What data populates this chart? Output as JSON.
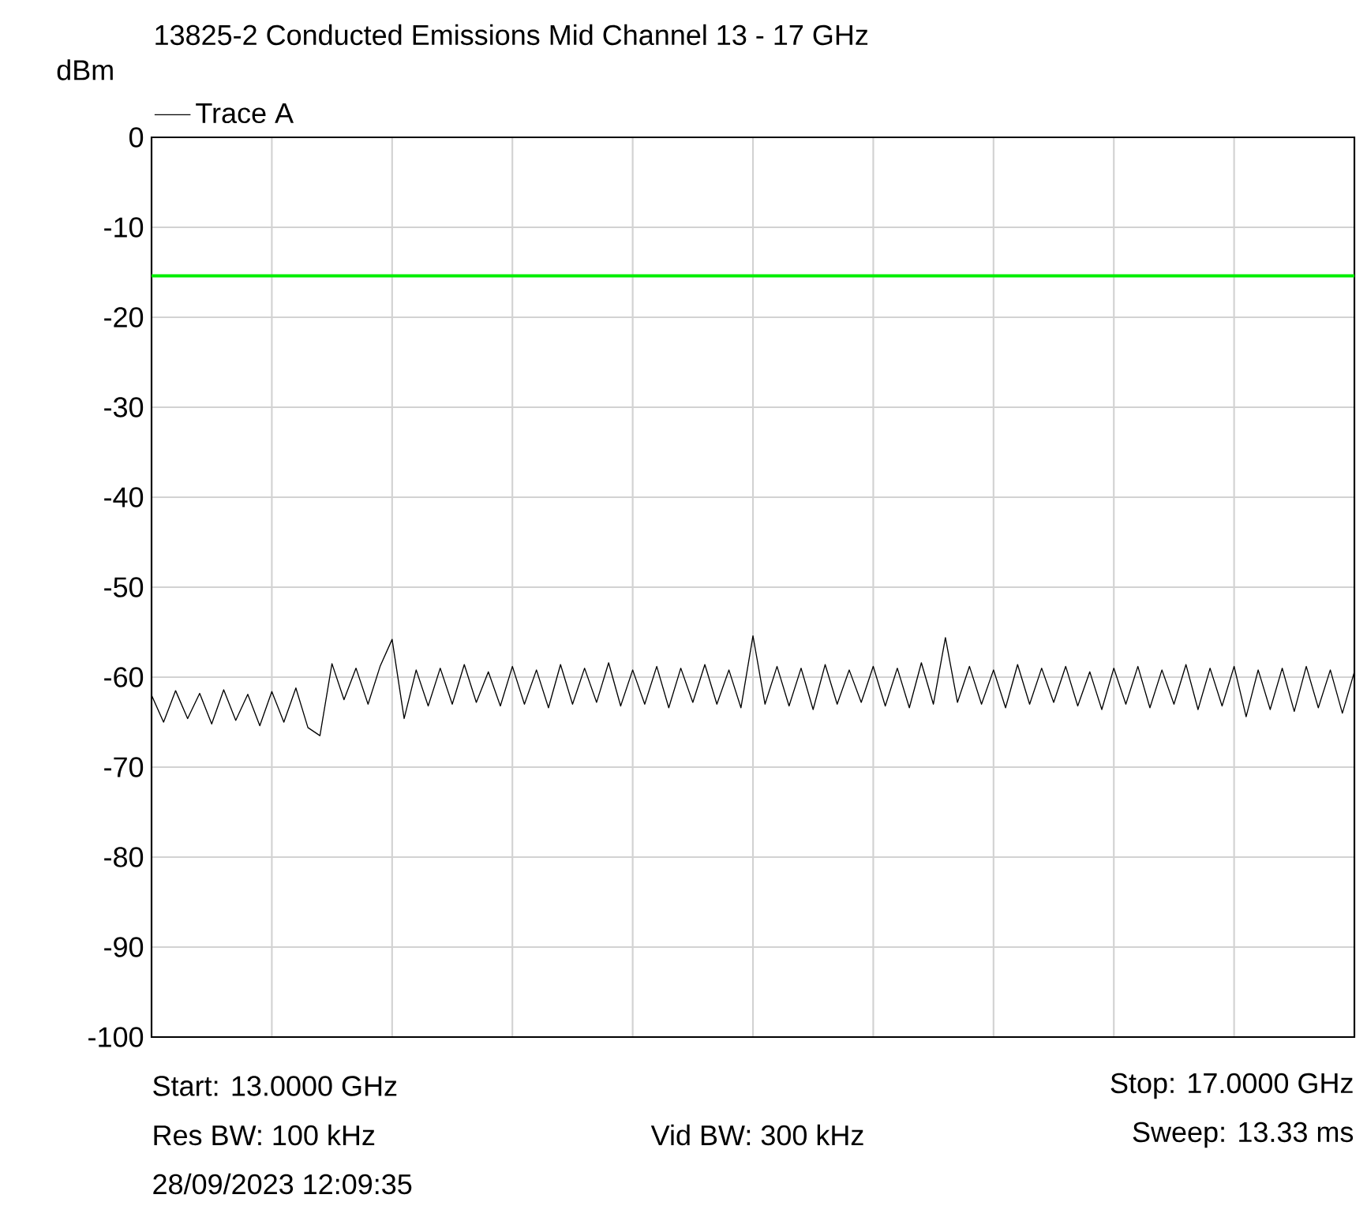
{
  "chart_data": {
    "type": "line",
    "title": "13825-2 Conducted Emissions Mid Channel 13 - 17 GHz",
    "ylabel": "dBm",
    "categories": [
      null,
      null,
      null,
      null,
      null,
      null,
      null,
      null,
      null,
      null,
      null,
      null,
      null,
      null,
      null,
      null,
      null,
      null,
      null,
      null,
      null,
      null,
      null,
      null,
      null,
      null,
      null,
      null,
      null,
      null,
      null,
      null,
      null,
      null,
      null,
      null,
      null,
      null,
      null,
      null,
      null,
      null,
      null,
      null,
      null,
      null,
      null,
      null,
      null,
      null,
      null,
      null,
      null,
      null,
      null,
      null,
      null,
      null,
      null,
      null,
      null,
      null,
      null,
      null,
      null,
      null,
      null,
      null,
      null,
      null,
      null,
      null,
      null,
      null,
      null,
      null,
      null,
      null,
      null,
      null,
      null,
      null,
      null,
      null,
      null,
      null,
      null,
      null,
      null,
      null,
      null,
      null,
      null,
      null,
      null,
      null,
      null,
      null,
      null,
      null,
      null
    ],
    "series": [
      {
        "name": "Trace A",
        "color": "#000000",
        "values": [
          -62.0,
          -65.0,
          -61.5,
          -64.6,
          -61.8,
          -65.2,
          -61.4,
          -64.8,
          -61.9,
          -65.4,
          -61.6,
          -65.0,
          -61.2,
          -65.6,
          -66.5,
          -58.5,
          -62.5,
          -59.0,
          -63.0,
          -58.8,
          -55.8,
          -64.6,
          -59.2,
          -63.2,
          -59.0,
          -63.0,
          -58.6,
          -62.8,
          -59.4,
          -63.2,
          -58.8,
          -63.0,
          -59.2,
          -63.4,
          -58.6,
          -63.0,
          -59.0,
          -62.8,
          -58.4,
          -63.2,
          -59.2,
          -63.0,
          -58.8,
          -63.4,
          -59.0,
          -62.8,
          -58.6,
          -63.0,
          -59.2,
          -63.4,
          -55.4,
          -63.0,
          -58.8,
          -63.2,
          -59.0,
          -63.6,
          -58.6,
          -63.0,
          -59.2,
          -62.8,
          -58.8,
          -63.2,
          -59.0,
          -63.4,
          -58.4,
          -63.0,
          -55.6,
          -62.8,
          -58.8,
          -63.0,
          -59.2,
          -63.4,
          -58.6,
          -63.0,
          -59.0,
          -62.8,
          -58.8,
          -63.2,
          -59.4,
          -63.6,
          -59.0,
          -63.0,
          -58.8,
          -63.4,
          -59.2,
          -63.0,
          -58.6,
          -63.6,
          -59.0,
          -63.2,
          -58.8,
          -64.4,
          -59.2,
          -63.6,
          -59.0,
          -63.8,
          -58.8,
          -63.4,
          -59.2,
          -64.0,
          -59.4
        ]
      }
    ],
    "ylim": [
      -100,
      0
    ],
    "yticks": [
      0,
      -10,
      -20,
      -30,
      -40,
      -50,
      -60,
      -70,
      -80,
      -90,
      -100
    ],
    "tick_labels": "y",
    "grid": true,
    "legend": "top left",
    "line_style": "solid",
    "marker": "none",
    "ref_lines": [
      {
        "axis": "y",
        "value": -15.4,
        "color": "#00ee00"
      }
    ],
    "annotations": [
      "Start: 13.0000 GHz",
      "Stop: 17.0000 GHz",
      "Res BW: 100 kHz",
      "Vid BW: 300 kHz",
      "Sweep: 13.33 ms",
      "28/09/2023 12:09:35"
    ]
  }
}
